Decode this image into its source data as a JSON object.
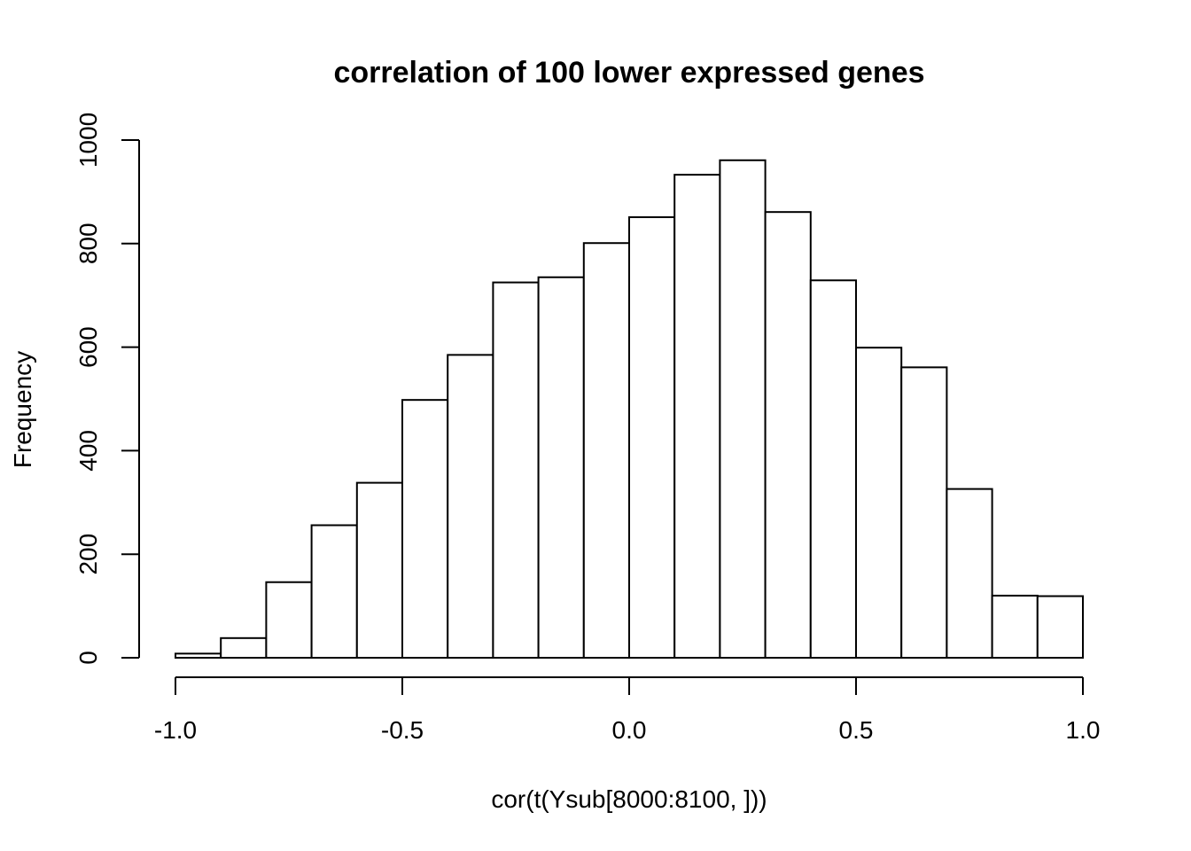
{
  "chart_data": {
    "type": "bar",
    "title": "correlation of 100 lower expressed genes",
    "xlabel": "cor(t(Ysub[8000:8100, ]))",
    "ylabel": "Frequency",
    "xlim": [
      -1.0,
      1.0
    ],
    "ylim": [
      0,
      1000
    ],
    "grid": false,
    "legend": "none",
    "x_ticks": [
      -1.0,
      -0.5,
      0.0,
      0.5,
      1.0
    ],
    "x_tick_labels": [
      "-1.0",
      "-0.5",
      "0.0",
      "0.5",
      "1.0"
    ],
    "y_ticks": [
      0,
      200,
      400,
      600,
      800,
      1000
    ],
    "y_tick_labels": [
      "0",
      "200",
      "400",
      "600",
      "800",
      "1000"
    ],
    "bins": [
      {
        "x0": -1.0,
        "x1": -0.9,
        "count": 8
      },
      {
        "x0": -0.9,
        "x1": -0.8,
        "count": 38
      },
      {
        "x0": -0.8,
        "x1": -0.7,
        "count": 146
      },
      {
        "x0": -0.7,
        "x1": -0.6,
        "count": 256
      },
      {
        "x0": -0.6,
        "x1": -0.5,
        "count": 338
      },
      {
        "x0": -0.5,
        "x1": -0.4,
        "count": 498
      },
      {
        "x0": -0.4,
        "x1": -0.3,
        "count": 585
      },
      {
        "x0": -0.3,
        "x1": -0.2,
        "count": 725
      },
      {
        "x0": -0.2,
        "x1": -0.1,
        "count": 735
      },
      {
        "x0": -0.1,
        "x1": 0.0,
        "count": 801
      },
      {
        "x0": 0.0,
        "x1": 0.1,
        "count": 851
      },
      {
        "x0": 0.1,
        "x1": 0.2,
        "count": 933
      },
      {
        "x0": 0.2,
        "x1": 0.3,
        "count": 961
      },
      {
        "x0": 0.3,
        "x1": 0.4,
        "count": 861
      },
      {
        "x0": 0.4,
        "x1": 0.5,
        "count": 729
      },
      {
        "x0": 0.5,
        "x1": 0.6,
        "count": 599
      },
      {
        "x0": 0.6,
        "x1": 0.7,
        "count": 561
      },
      {
        "x0": 0.7,
        "x1": 0.8,
        "count": 326
      },
      {
        "x0": 0.8,
        "x1": 0.9,
        "count": 120
      },
      {
        "x0": 0.9,
        "x1": 1.0,
        "count": 119
      }
    ],
    "colors": {
      "bar_fill": "#ffffff",
      "bar_stroke": "#000000",
      "axis": "#000000",
      "text": "#000000"
    }
  }
}
